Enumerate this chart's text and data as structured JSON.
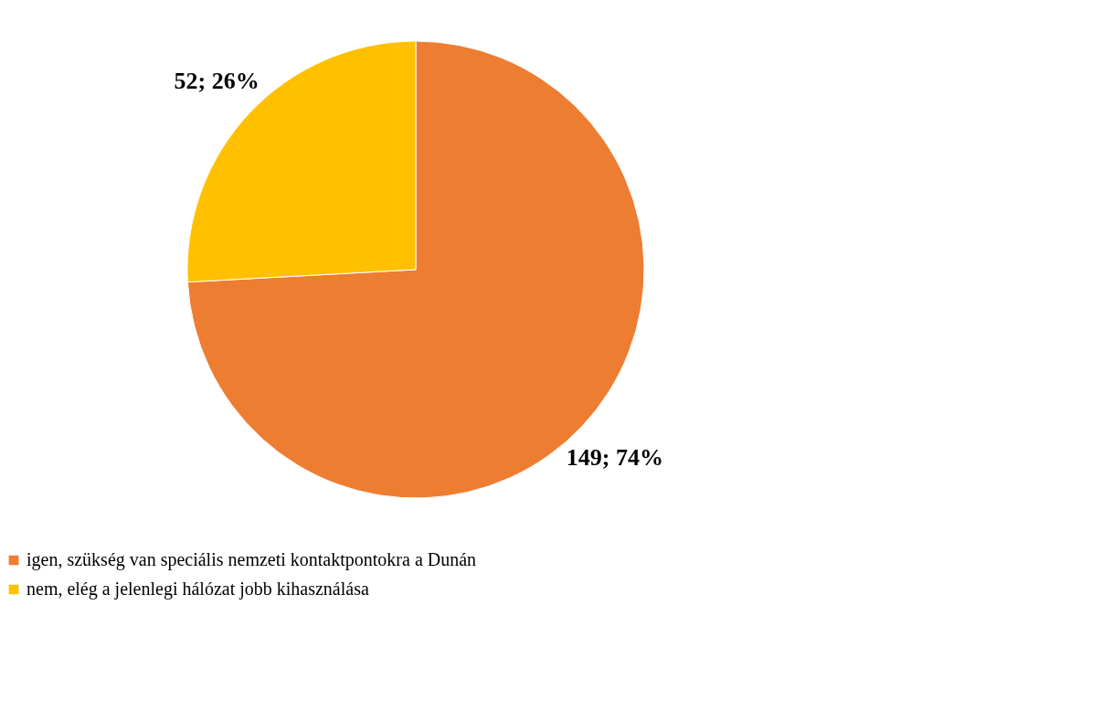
{
  "chart_data": {
    "type": "pie",
    "categories": [
      "igen, szükség van speciális nemzeti kontaktpontokra a Dunán",
      "nem, elég a jelenlegi hálózat jobb kihasználása"
    ],
    "values": [
      149,
      52
    ],
    "colors": [
      "#ed7d31",
      "#ffc000"
    ],
    "value_labels": [
      "149; 74%",
      "52; 26%"
    ],
    "legend": "bottom"
  }
}
